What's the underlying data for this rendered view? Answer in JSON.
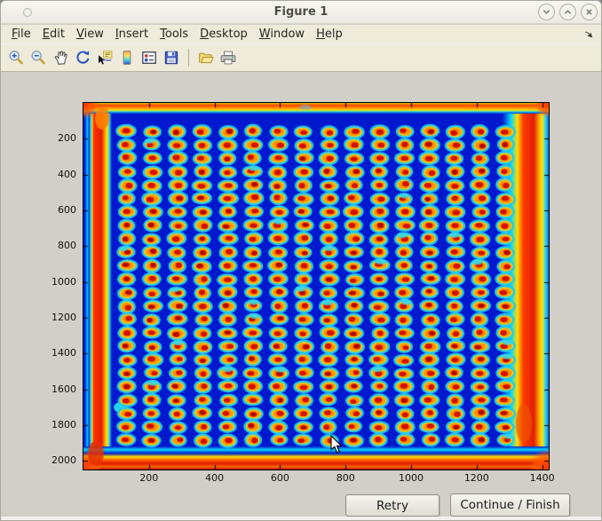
{
  "window": {
    "title": "Figure 1",
    "controls": [
      {
        "id": "minimize",
        "glyph": "chevron-down"
      },
      {
        "id": "maximize",
        "glyph": "chevron-up"
      },
      {
        "id": "close",
        "glyph": "x"
      }
    ]
  },
  "menu_bar": {
    "items": [
      "File",
      "Edit",
      "View",
      "Insert",
      "Tools",
      "Desktop",
      "Window",
      "Help"
    ]
  },
  "toolbar": {
    "buttons": [
      {
        "id": "zoom-in",
        "label": "Zoom In"
      },
      {
        "id": "zoom-out",
        "label": "Zoom Out"
      },
      {
        "id": "pan",
        "label": "Pan"
      },
      {
        "id": "rotate-3d",
        "label": "Rotate 3D"
      },
      {
        "id": "data-cursor",
        "label": "Data Cursor"
      },
      {
        "id": "colorbar",
        "label": "Insert Colorbar"
      },
      {
        "id": "legend",
        "label": "Insert Legend"
      },
      {
        "id": "save",
        "label": "Save Figure"
      },
      {
        "id": "separator"
      },
      {
        "id": "open",
        "label": "Open File"
      },
      {
        "id": "print",
        "label": "Print Figure"
      }
    ]
  },
  "buttons": {
    "retry_label": "Retry",
    "continue_label": "Continue / Finish"
  },
  "chart_data": {
    "type": "heatmap",
    "title": "",
    "xlabel": "",
    "ylabel": "",
    "x_ticks": [
      200,
      400,
      600,
      800,
      1000,
      1200,
      1400
    ],
    "y_ticks": [
      200,
      400,
      600,
      800,
      1000,
      1200,
      1400,
      1600,
      1800,
      2000
    ],
    "xlim": [
      0,
      1420
    ],
    "ylim": [
      0,
      2048
    ],
    "y_direction": "down",
    "colormap": "jet",
    "grid_lines": "off",
    "legend": "none",
    "description": "Scanned microplate / microarray image shown with jet colormap: a 24-row by 16-column grid of elliptical spots with dark-red cores, orange-yellow bodies and cyan halos on a deep blue background; saturated red bands run along all four edges of the scan",
    "grid": {
      "rows": 24,
      "cols": 16,
      "row_start_data": 160,
      "row_step_data": 75,
      "col_start_data": 133,
      "col_step_data": 77
    },
    "colors": {
      "background": "#0119ce",
      "spot_core": "#d31000",
      "spot_body": "#ff9400",
      "spot_ring": "#ffd000",
      "spot_halo": "#22cbee",
      "border_band": "#e02000"
    }
  },
  "theme": {
    "chrome_bg": "#eeebdb",
    "titlebar_bg": "#f3f2ed",
    "canvas_bg": "#d2cfc8"
  }
}
